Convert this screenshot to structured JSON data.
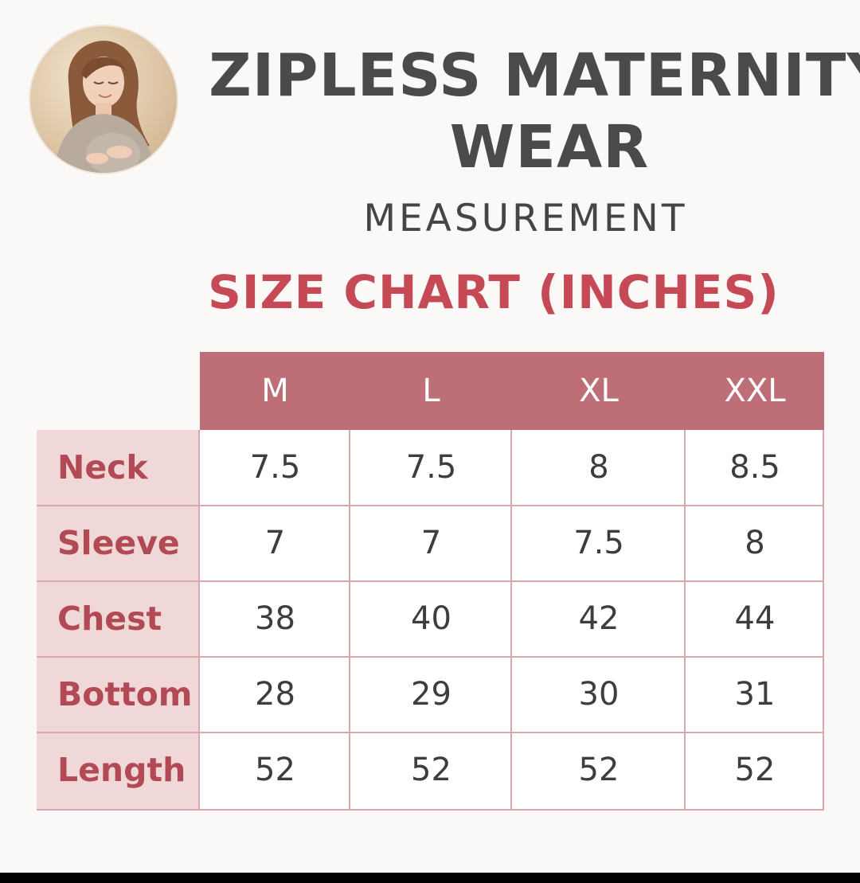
{
  "title_line1": "ZIPLESS MATERNITY",
  "title_line2": "WEAR",
  "subtitle": "MEASUREMENT",
  "chart_heading": "SIZE CHART (INCHES)",
  "columns": [
    "M",
    "L",
    "XL",
    "XXL"
  ],
  "rows": [
    {
      "label": "Neck",
      "values": [
        "7.5",
        "7.5",
        "8",
        "8.5"
      ]
    },
    {
      "label": "Sleeve",
      "values": [
        "7",
        "7",
        "7.5",
        "8"
      ]
    },
    {
      "label": "Chest",
      "values": [
        "38",
        "40",
        "42",
        "44"
      ]
    },
    {
      "label": "Bottom",
      "values": [
        "28",
        "29",
        "30",
        "31"
      ]
    },
    {
      "label": "Length",
      "values": [
        "52",
        "52",
        "52",
        "52"
      ]
    }
  ],
  "colors": {
    "header_fill": "#bd6e76",
    "row_label_fill": "#f1d8d8",
    "heading_red": "#c64a55",
    "row_label_text": "#b24a56",
    "title_gray": "#4a4a4a"
  }
}
